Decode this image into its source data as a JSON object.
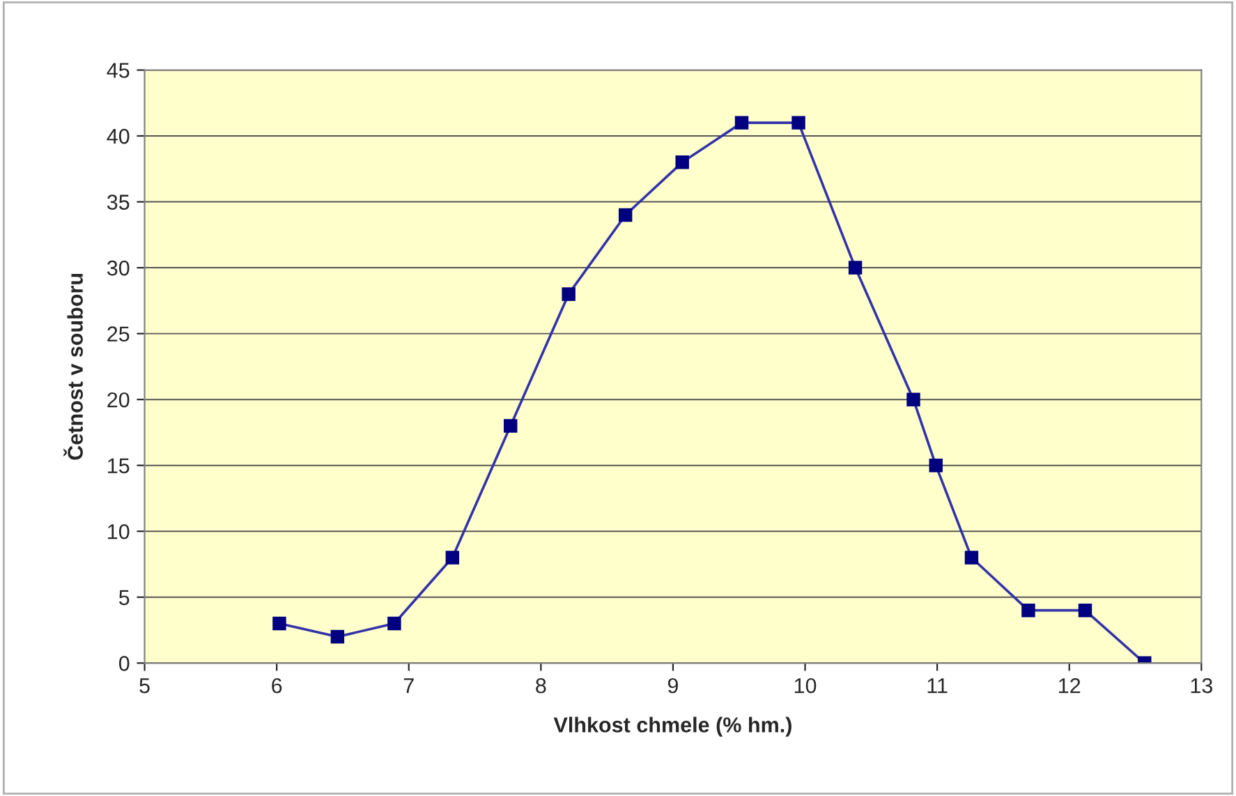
{
  "chart_data": {
    "type": "line",
    "xlabel": "Vlhkost chmele (% hm.)",
    "ylabel": "Četnost v souboru",
    "x": [
      6.02,
      6.46,
      6.89,
      7.33,
      7.77,
      8.21,
      8.64,
      9.07,
      9.52,
      9.95,
      10.38,
      10.82,
      10.99,
      11.26,
      11.69,
      12.12,
      12.57
    ],
    "series": [
      {
        "color": "#000080",
        "values": [
          3,
          2,
          3,
          8,
          18,
          28,
          34,
          38,
          41,
          41,
          30,
          20,
          15,
          8,
          4,
          4,
          0
        ]
      }
    ],
    "xlim": [
      5,
      13
    ],
    "xticks": [
      5,
      6,
      7,
      8,
      9,
      10,
      11,
      12,
      13
    ],
    "ylim": [
      0,
      45
    ],
    "yticks": [
      0,
      5,
      10,
      15,
      20,
      25,
      30,
      35,
      40,
      45
    ],
    "grid": "y",
    "legend": false,
    "marker": "square",
    "line_style": "solid"
  }
}
